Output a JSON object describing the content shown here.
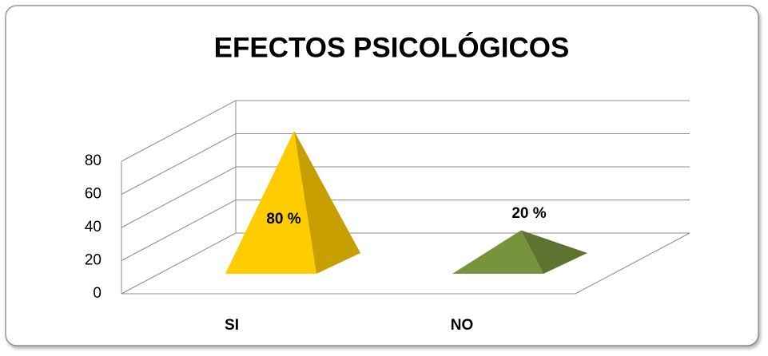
{
  "chart_data": {
    "type": "pyramid",
    "title": "EFECTOS PSICOLÓGICOS",
    "categories": [
      "SI",
      "NO"
    ],
    "values": [
      80,
      20
    ],
    "value_labels": [
      "80 %",
      "20 %"
    ],
    "colors": [
      "#ffcc00",
      "#77933c"
    ],
    "ylim": [
      0,
      80
    ],
    "yticks": [
      0,
      20,
      40,
      60,
      80
    ],
    "grid": true
  }
}
